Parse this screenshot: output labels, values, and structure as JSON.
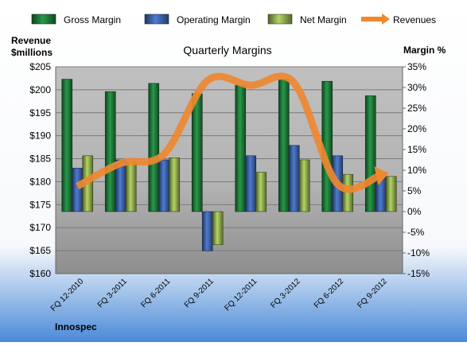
{
  "chart_data": {
    "type": "bar",
    "title": "Quarterly Margins",
    "brand": "Innospec",
    "left_axis": {
      "label_lines": [
        "Revenue",
        "$millions"
      ],
      "ticks": [
        "$160",
        "$165",
        "$170",
        "$175",
        "$180",
        "$185",
        "$190",
        "$195",
        "$200",
        "$205"
      ],
      "range": [
        160,
        205
      ]
    },
    "right_axis": {
      "label": "Margin %",
      "ticks": [
        "-15%",
        "-10%",
        "-5%",
        "0%",
        "5%",
        "10%",
        "15%",
        "20%",
        "25%",
        "30%",
        "35%"
      ],
      "range": [
        -15,
        35
      ]
    },
    "categories": [
      "FQ 12-2010",
      "FQ 3-2011",
      "FQ 6-2011",
      "FQ 9-2011",
      "FQ 12-2011",
      "FQ 3-2012",
      "FQ 6-2012",
      "FQ 9-2012"
    ],
    "series": [
      {
        "name": "Gross Margin",
        "axis": "right",
        "color": "#1f7a3a",
        "values": [
          32,
          29,
          31,
          28.5,
          30.5,
          32,
          31.5,
          28
        ]
      },
      {
        "name": "Operating Margin",
        "axis": "right",
        "color": "#3e63a8",
        "values": [
          10.5,
          12.5,
          12.5,
          -9.5,
          13.5,
          16,
          13.5,
          9.5
        ]
      },
      {
        "name": "Net Margin",
        "axis": "right",
        "color": "#8faa4e",
        "values": [
          13.5,
          12,
          13,
          -8,
          9.5,
          12.5,
          9,
          8.5
        ]
      },
      {
        "name": "Revenues",
        "axis": "left",
        "color": "#ee8830",
        "values": [
          179,
          184,
          186,
          202,
          201,
          201.5,
          179.5,
          181.5
        ]
      }
    ],
    "legend_position": "top"
  }
}
